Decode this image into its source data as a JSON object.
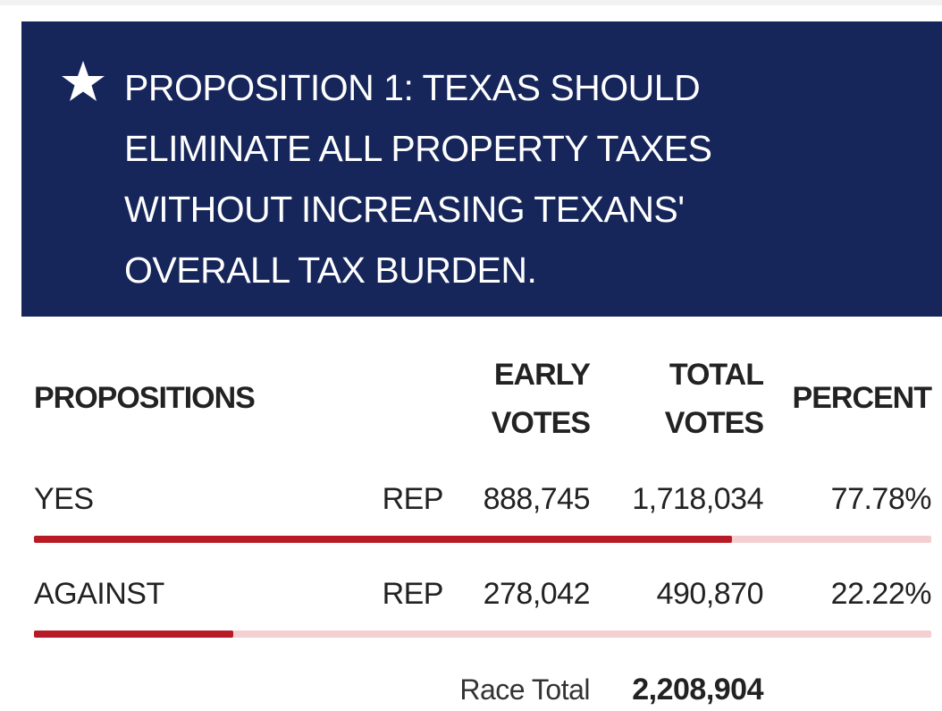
{
  "banner": {
    "icon": "star-icon",
    "title": "PROPOSITION 1: TEXAS SHOULD ELIMINATE ALL PROPERTY TAXES WITHOUT INCREASING TEXANS' OVERALL TAX BURDEN.",
    "background_color": "#16265a"
  },
  "table": {
    "headers": {
      "propositions": "PROPOSITIONS",
      "early_votes": "EARLY VOTES",
      "total_votes": "TOTAL VOTES",
      "percent": "PERCENT"
    },
    "rows": [
      {
        "label": "YES",
        "party": "REP",
        "early_votes": "888,745",
        "total_votes": "1,718,034",
        "percent": "77.78%",
        "bar_fraction": 0.7778
      },
      {
        "label": "AGAINST",
        "party": "REP",
        "early_votes": "278,042",
        "total_votes": "490,870",
        "percent": "22.22%",
        "bar_fraction": 0.2222
      }
    ],
    "race_total_label": "Race Total",
    "race_total_value": "2,208,904",
    "bar_fill_color": "#b81b25",
    "bar_track_color": "#f3cfd2"
  }
}
